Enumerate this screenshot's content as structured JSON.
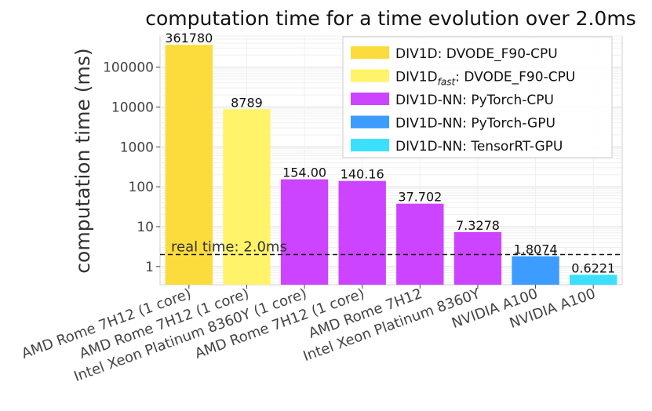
{
  "chart_data": {
    "type": "bar",
    "title": "computation time for a time evolution over 2.0ms",
    "xlabel": "",
    "ylabel": "computation time (ms)",
    "yscale": "log",
    "ylim": [
      0.35,
      600000
    ],
    "yticks": [
      1,
      10,
      100,
      1000,
      10000,
      100000
    ],
    "ytick_labels": [
      "1",
      "10",
      "100",
      "1000",
      "10000",
      "100000"
    ],
    "grid": true,
    "categories": [
      "AMD Rome 7H12 (1 core)",
      "AMD Rome 7H12 (1 core)",
      "Intel Xeon Platinum 8360Y (1 core)",
      "AMD Rome 7H12 (1 core)",
      "AMD Rome 7H12",
      "Intel Xeon Platinum 8360Y",
      "NVIDIA A100",
      "NVIDIA A100"
    ],
    "values": [
      361780,
      8789,
      154.0,
      140.16,
      37.702,
      7.3278,
      1.8074,
      0.6221
    ],
    "value_labels": [
      "361780",
      "8789",
      "154.00",
      "140.16",
      "37.702",
      "7.3278",
      "1.8074",
      "0.6221"
    ],
    "bar_series": [
      0,
      1,
      2,
      2,
      2,
      2,
      3,
      4
    ],
    "series": [
      {
        "name": "DIV1D: DVODE_F90-CPU",
        "color": "#fcdc3c"
      },
      {
        "name": "DIV1D",
        "name_sub": "fast",
        "name_rest": ": DVODE_F90-CPU",
        "color": "#fff36a"
      },
      {
        "name": "DIV1D-NN: PyTorch-CPU",
        "color": "#cc44ff"
      },
      {
        "name": "DIV1D-NN: PyTorch-GPU",
        "color": "#3d9cff"
      },
      {
        "name": "DIV1D-NN: TensorRT-GPU",
        "color": "#3ce0ff"
      }
    ],
    "reference_line": {
      "value": 2.0,
      "label": "real time: 2.0ms",
      "style": "dashed"
    },
    "legend": "top-right"
  }
}
